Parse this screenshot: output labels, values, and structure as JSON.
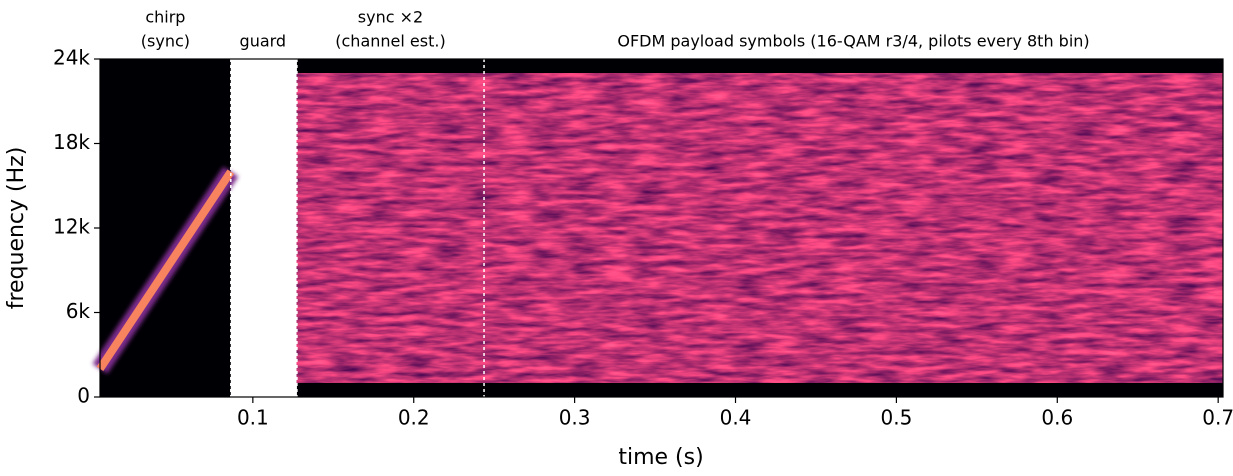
{
  "chart_data": {
    "type": "spectrogram",
    "xlabel": "time (s)",
    "ylabel": "frequency (Hz)",
    "xlim": [
      0.005,
      0.703
    ],
    "ylim": [
      0,
      24000
    ],
    "xticks": [
      0.1,
      0.2,
      0.3,
      0.4,
      0.5,
      0.6,
      0.7
    ],
    "yticks": [
      0,
      {
        "value": 6000,
        "label": "6k"
      },
      {
        "value": 12000,
        "label": "12k"
      },
      {
        "value": 18000,
        "label": "18k"
      },
      {
        "value": 24000,
        "label": "24k"
      }
    ],
    "segments": [
      {
        "label": [
          "chirp",
          "(sync)"
        ],
        "start": 0.005,
        "end": 0.0863,
        "color": "#000004",
        "noise": false
      },
      {
        "label": [
          "guard"
        ],
        "start": 0.0888,
        "end": 0.1236,
        "color": "#ffffff",
        "noise": false
      },
      {
        "label": [
          "sync ×2",
          "(channel est.)"
        ],
        "start": 0.1274,
        "end": 0.2437,
        "color": "#000004",
        "noise": true
      },
      {
        "label": [
          "OFDM payload symbols (16-QAM r3/4, pilots every 8th bin)"
        ],
        "start": 0.2437,
        "end": 0.703,
        "color": "#000004",
        "noise": true
      }
    ],
    "band": [
      1000,
      23000
    ],
    "chirp": {
      "t": [
        0.005,
        0.0863
      ],
      "f": [
        2000,
        16000
      ],
      "color": "#f8845f"
    },
    "markers": [
      0.0863,
      0.1274,
      0.2437
    ]
  }
}
